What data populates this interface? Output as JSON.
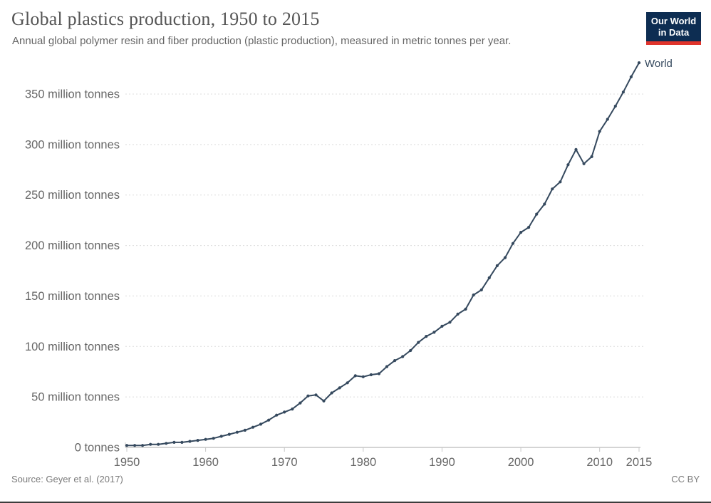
{
  "header": {
    "title": "Global plastics production, 1950 to 2015",
    "subtitle": "Annual global polymer resin and fiber production (plastic production), measured in metric tonnes per year."
  },
  "logo": {
    "line1": "Our World",
    "line2": "in Data",
    "background": "#0d2d52",
    "bar_color": "#e0342c",
    "text_color": "#ffffff"
  },
  "chart_data": {
    "type": "line",
    "title": "Global plastics production, 1950 to 2015",
    "xlabel": "",
    "ylabel": "",
    "unit": "million tonnes",
    "axes": {
      "x_min": 1950,
      "x_max": 2015,
      "y_min": 0,
      "y_grid_max": 350,
      "grid": "horizontal-dashed",
      "legend_position": "line-end-label"
    },
    "x_ticks": [
      1950,
      1960,
      1970,
      1980,
      1990,
      2000,
      2010,
      2015
    ],
    "x_tick_labels": [
      "1950",
      "1960",
      "1970",
      "1980",
      "1990",
      "2000",
      "2010",
      "2015"
    ],
    "y_ticks": [
      {
        "value": 0,
        "label": "0 tonnes"
      },
      {
        "value": 50,
        "label": "50 million tonnes"
      },
      {
        "value": 100,
        "label": "100 million tonnes"
      },
      {
        "value": 150,
        "label": "150 million tonnes"
      },
      {
        "value": 200,
        "label": "200 million tonnes"
      },
      {
        "value": 250,
        "label": "250 million tonnes"
      },
      {
        "value": 300,
        "label": "300 million tonnes"
      },
      {
        "value": 350,
        "label": "350 million tonnes"
      }
    ],
    "series": [
      {
        "name": "World",
        "years": [
          1950,
          1951,
          1952,
          1953,
          1954,
          1955,
          1956,
          1957,
          1958,
          1959,
          1960,
          1961,
          1962,
          1963,
          1964,
          1965,
          1966,
          1967,
          1968,
          1969,
          1970,
          1971,
          1972,
          1973,
          1974,
          1975,
          1976,
          1977,
          1978,
          1979,
          1980,
          1981,
          1982,
          1983,
          1984,
          1985,
          1986,
          1987,
          1988,
          1989,
          1990,
          1991,
          1992,
          1993,
          1994,
          1995,
          1996,
          1997,
          1998,
          1999,
          2000,
          2001,
          2002,
          2003,
          2004,
          2005,
          2006,
          2007,
          2008,
          2009,
          2010,
          2011,
          2012,
          2013,
          2014,
          2015
        ],
        "values": [
          2,
          2,
          2,
          3,
          3,
          4,
          5,
          5,
          6,
          7,
          8,
          9,
          11,
          13,
          15,
          17,
          20,
          23,
          27,
          32,
          35,
          38,
          44,
          51,
          52,
          46,
          54,
          59,
          64,
          71,
          70,
          72,
          73,
          80,
          86,
          90,
          96,
          104,
          110,
          114,
          120,
          124,
          132,
          137,
          151,
          156,
          168,
          180,
          188,
          202,
          213,
          218,
          231,
          241,
          256,
          263,
          280,
          295,
          281,
          288,
          313,
          325,
          338,
          352,
          367,
          381
        ]
      }
    ],
    "colors": {
      "line": "#35495e",
      "grid": "#dcdcdc",
      "baseline": "#a8a8a8",
      "tick": "#c8c8c8",
      "axis_text": "#666666"
    }
  },
  "footer": {
    "source": "Source: Geyer et al. (2017)",
    "license": "CC BY"
  }
}
